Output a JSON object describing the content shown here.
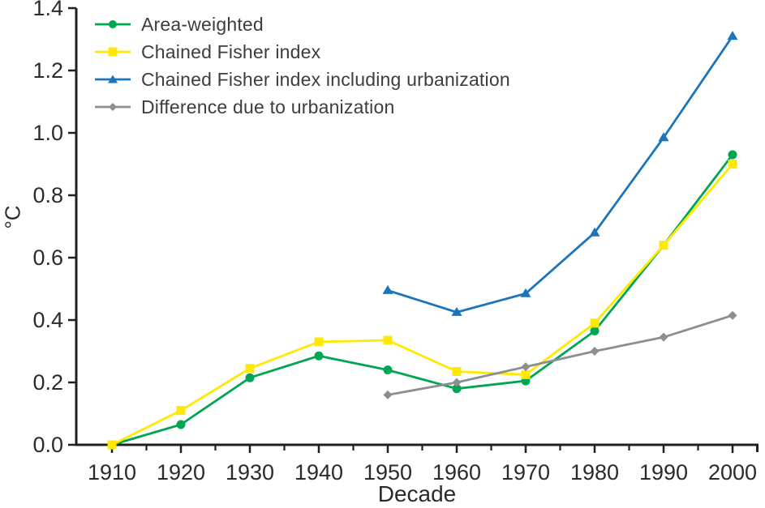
{
  "chart_data": {
    "type": "line",
    "title": "",
    "xlabel": "Decade",
    "ylabel": "°C",
    "categories": [
      1910,
      1920,
      1930,
      1940,
      1950,
      1960,
      1970,
      1980,
      1990,
      2000
    ],
    "xtick_labels": [
      "1910",
      "1920",
      "1930",
      "1940",
      "1950",
      "1960",
      "1970",
      "1980",
      "1990",
      "2000"
    ],
    "ylim": [
      0.0,
      1.4
    ],
    "ytick_step": 0.2,
    "ytick_labels": [
      "0.0",
      "0.2",
      "0.4",
      "0.6",
      "0.8",
      "1.0",
      "1.2",
      "1.4"
    ],
    "grid": false,
    "legend_position": "top-left",
    "series": [
      {
        "name": "Area-weighted",
        "marker": "circle",
        "color": "#00A651",
        "values": [
          0.0,
          0.065,
          0.215,
          0.285,
          0.24,
          0.18,
          0.205,
          0.365,
          0.64,
          0.93
        ]
      },
      {
        "name": "Chained Fisher index",
        "marker": "square",
        "color": "#FFE900",
        "values": [
          0.0,
          0.11,
          0.245,
          0.33,
          0.335,
          0.235,
          0.225,
          0.39,
          0.64,
          0.9
        ]
      },
      {
        "name": "Chained Fisher index including urbanization",
        "marker": "triangle",
        "color": "#1B75BC",
        "values": [
          null,
          null,
          null,
          null,
          0.495,
          0.425,
          0.485,
          0.68,
          0.985,
          1.31
        ]
      },
      {
        "name": "Difference due to urbanization",
        "marker": "diamond",
        "color": "#8C8E90",
        "values": [
          null,
          null,
          null,
          null,
          0.16,
          0.2,
          0.25,
          0.3,
          0.345,
          0.415
        ]
      }
    ]
  },
  "colors": {
    "axis": "#231F20",
    "tick_text": "#2B2B2D"
  }
}
